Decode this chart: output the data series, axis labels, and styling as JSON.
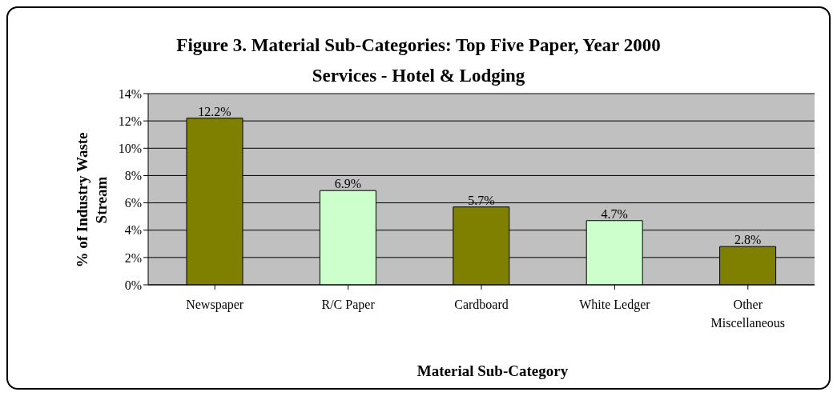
{
  "chart_data": {
    "type": "bar",
    "title": "Figure 3. Material Sub-Categories: Top Five Paper, Year 2000",
    "subtitle": "Services - Hotel & Lodging",
    "xlabel": "Material Sub-Category",
    "ylabel": "% of Industry Waste Stream",
    "categories": [
      "Newspaper",
      "R/C Paper",
      "Cardboard",
      "White Ledger",
      "Other Miscellaneous"
    ],
    "values": [
      12.2,
      6.9,
      5.7,
      4.7,
      2.8
    ],
    "colors": [
      "#808000",
      "#ccffcc",
      "#808000",
      "#ccffcc",
      "#808000"
    ],
    "value_labels": [
      "12.2%",
      "6.9%",
      "5.7%",
      "4.7%",
      "2.8%"
    ],
    "ylim": [
      0,
      14
    ],
    "yticks": [
      {
        "value": 0,
        "label": "0%"
      },
      {
        "value": 2,
        "label": "2%"
      },
      {
        "value": 4,
        "label": "4%"
      },
      {
        "value": 6,
        "label": "6%"
      },
      {
        "value": 8,
        "label": "8%"
      },
      {
        "value": 10,
        "label": "10%"
      },
      {
        "value": 12,
        "label": "12%"
      },
      {
        "value": 14,
        "label": "14%"
      }
    ],
    "grid": "y"
  }
}
